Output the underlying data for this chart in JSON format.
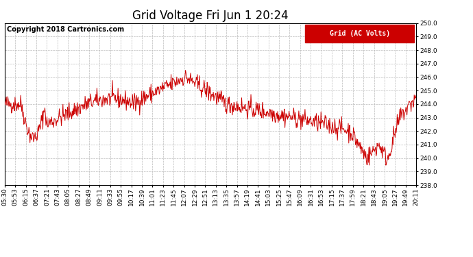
{
  "title": "Grid Voltage Fri Jun 1 20:24",
  "copyright": "Copyright 2018 Cartronics.com",
  "legend_label": "Grid (AC Volts)",
  "legend_bg": "#cc0000",
  "legend_fg": "#ffffff",
  "line_color": "#cc0000",
  "bg_color": "#ffffff",
  "grid_color": "#bbbbbb",
  "ylim": [
    238.0,
    250.0
  ],
  "yticks": [
    238.0,
    239.0,
    240.0,
    241.0,
    242.0,
    243.0,
    244.0,
    245.0,
    246.0,
    247.0,
    248.0,
    249.0,
    250.0
  ],
  "xtick_labels": [
    "05:30",
    "05:53",
    "06:15",
    "06:37",
    "07:21",
    "07:43",
    "08:05",
    "08:27",
    "08:49",
    "09:11",
    "09:33",
    "09:55",
    "10:17",
    "10:39",
    "11:01",
    "11:23",
    "11:45",
    "12:07",
    "12:29",
    "12:51",
    "13:13",
    "13:35",
    "13:57",
    "14:19",
    "14:41",
    "15:03",
    "15:25",
    "15:47",
    "16:09",
    "16:31",
    "16:53",
    "17:15",
    "17:37",
    "17:59",
    "18:21",
    "18:43",
    "19:05",
    "19:27",
    "19:49",
    "20:11"
  ],
  "title_fontsize": 12,
  "copyright_fontsize": 7,
  "tick_fontsize": 6.5,
  "legend_fontsize": 7
}
